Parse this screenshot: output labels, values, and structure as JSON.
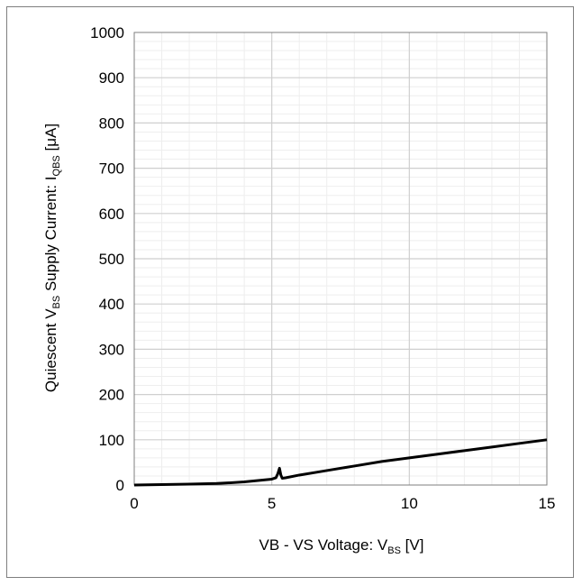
{
  "chart_data": {
    "type": "line",
    "xlabel": {
      "main": "VB - VS Voltage: V",
      "sub": "BS",
      "unit": " [V]"
    },
    "ylabel": {
      "p1": "Quiescent V",
      "sub1": "BS",
      "p2": " Supply Current: I",
      "sub2": "QBS",
      "unit": "  [μA]"
    },
    "xlim": [
      0,
      15
    ],
    "ylim": [
      0,
      1000
    ],
    "x_ticks": [
      "0",
      "5",
      "10",
      "15"
    ],
    "y_ticks": [
      "0",
      "100",
      "200",
      "300",
      "400",
      "500",
      "600",
      "700",
      "800",
      "900",
      "1000"
    ],
    "grid": true,
    "series": [
      {
        "color": "#000000",
        "x": [
          0,
          1,
          2,
          3,
          3.5,
          4,
          4.5,
          5,
          5.15,
          5.22,
          5.28,
          5.33,
          5.38,
          5.5,
          6,
          7,
          8,
          9,
          10,
          11,
          12,
          13,
          14,
          15
        ],
        "y": [
          0,
          1,
          2,
          3.5,
          5,
          7,
          10,
          13,
          16,
          25,
          37,
          22,
          15,
          16,
          22,
          32,
          42,
          52,
          60,
          68,
          76,
          84,
          92,
          100
        ]
      }
    ]
  }
}
